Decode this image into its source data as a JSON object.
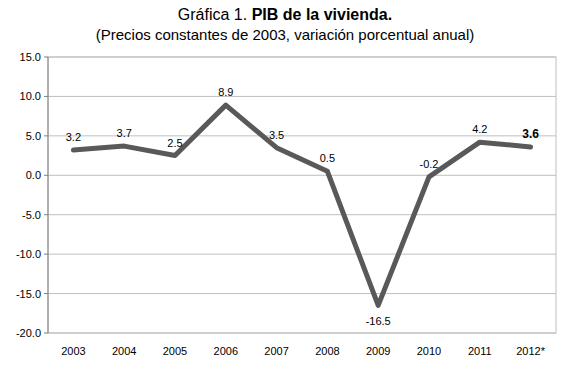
{
  "chart_data": {
    "type": "line",
    "title": "Gráfica 1. PIB de la vivienda.",
    "subtitle": "(Precios constantes de 2003, variación porcentual anual)",
    "categories": [
      "2003",
      "2004",
      "2005",
      "2006",
      "2007",
      "2008",
      "2009",
      "2010",
      "2011",
      "2012*"
    ],
    "values": [
      3.2,
      3.7,
      2.5,
      8.9,
      3.5,
      0.5,
      -16.5,
      -0.2,
      4.2,
      3.6
    ],
    "color": "#595959",
    "ylim": [
      -20,
      15
    ],
    "yticks": [
      {
        "value": 15,
        "label": "15.0"
      },
      {
        "value": 10,
        "label": "10.0"
      },
      {
        "value": 5,
        "label": "5.0"
      },
      {
        "value": 0,
        "label": "0.0"
      },
      {
        "value": -5,
        "label": "-5.0"
      },
      {
        "value": -10,
        "label": "-10.0"
      },
      {
        "value": -15,
        "label": "-15.0"
      },
      {
        "value": -20,
        "label": "-20.0"
      }
    ],
    "grid": true,
    "data_labels": true
  }
}
